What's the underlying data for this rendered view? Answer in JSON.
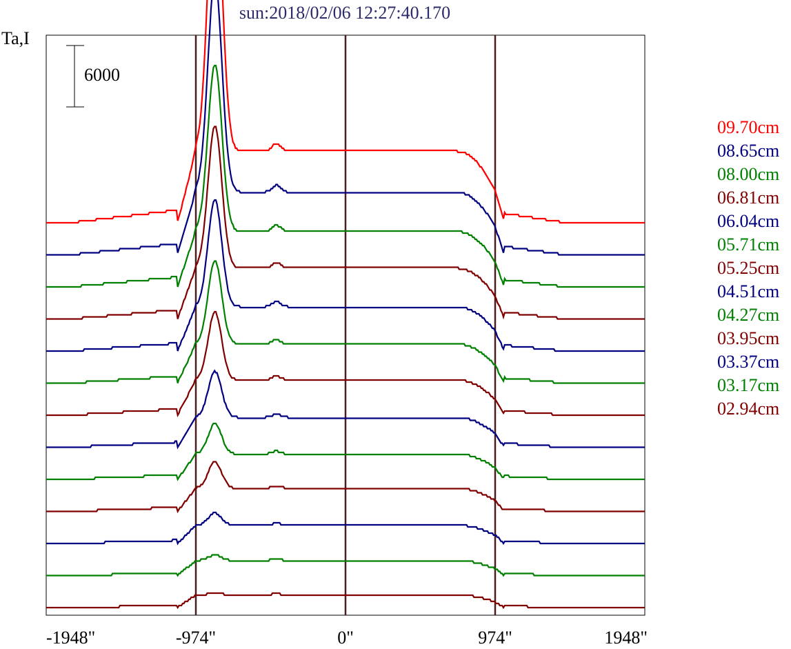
{
  "chart_data": {
    "type": "line",
    "title": "sun:2018/02/06 12:27:40.170",
    "ylabel": "Ta,I",
    "scale_bar_label": "6000",
    "x_ticks": [
      "-1948\"",
      "-974\"",
      "0\"",
      "974\"",
      "1948\""
    ],
    "x_tick_values": [
      -1948,
      -974,
      0,
      974,
      1948
    ],
    "xlim": [
      -1948,
      1948
    ],
    "vertical_markers": [
      -974,
      0,
      974
    ],
    "series": [
      {
        "name": "09.70cm",
        "color": "#ff0000",
        "peak": 1.0
      },
      {
        "name": "08.65cm",
        "color": "#000080",
        "peak": 0.9
      },
      {
        "name": "08.00cm",
        "color": "#008000",
        "peak": 0.82
      },
      {
        "name": "06.81cm",
        "color": "#800000",
        "peak": 0.78
      },
      {
        "name": "06.04cm",
        "color": "#000080",
        "peak": 0.7
      },
      {
        "name": "05.71cm",
        "color": "#008000",
        "peak": 0.64
      },
      {
        "name": "05.25cm",
        "color": "#800000",
        "peak": 0.6
      },
      {
        "name": "04.51cm",
        "color": "#000080",
        "peak": 0.52
      },
      {
        "name": "04.27cm",
        "color": "#008000",
        "peak": 0.45
      },
      {
        "name": "03.95cm",
        "color": "#800000",
        "peak": 0.44
      },
      {
        "name": "03.37cm",
        "color": "#000080",
        "peak": 0.34
      },
      {
        "name": "03.17cm",
        "color": "#008000",
        "peak": 0.28
      },
      {
        "name": "02.94cm",
        "color": "#800000",
        "peak": 0.24
      }
    ],
    "baseline_colors": [
      "#800000",
      "#008000",
      "#000080",
      "#800000",
      "#000080",
      "#008000",
      "#800000",
      "#000080",
      "#008000",
      "#800000",
      "#000080",
      "#008000",
      "#800000"
    ]
  }
}
